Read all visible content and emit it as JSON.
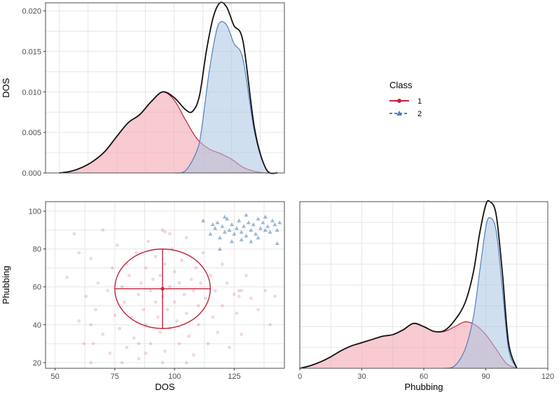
{
  "colors": {
    "class1_fill": "#f4a7b3",
    "class1_line": "#c0233b",
    "class2_fill": "#a9c4e2",
    "class2_line": "#4f7fb8",
    "total_line": "#111111",
    "grid": "#e6e6e6",
    "panel_border": "#4d4d4d"
  },
  "legend": {
    "title": "Class",
    "items": [
      {
        "label": "1",
        "color": "#c0233b",
        "shape": "circle",
        "linestyle": "solid"
      },
      {
        "label": "2",
        "color": "#4f7fb8",
        "shape": "triangle",
        "linestyle": "dashed"
      }
    ]
  },
  "chart_data": [
    {
      "type": "area",
      "panel": "top-left",
      "ylabel": "DOS",
      "xlabel": "",
      "xlim": [
        44,
        148
      ],
      "ylim": [
        0,
        0.021
      ],
      "x_ticks": [
        50,
        75,
        100,
        125
      ],
      "y_ticks": [
        0.0,
        0.005,
        0.01,
        0.015,
        0.02
      ],
      "y_tick_labels": [
        "0.000",
        "0.005",
        "0.010",
        "0.015",
        "0.020"
      ],
      "show_x_tick_labels": false,
      "grid": true,
      "series": [
        {
          "name": "1",
          "x": [
            50,
            55,
            60,
            65,
            70,
            75,
            80,
            85,
            90,
            95,
            100,
            105,
            110,
            115,
            120,
            125,
            130,
            135,
            140,
            145
          ],
          "values": [
            0.0,
            0.0002,
            0.0007,
            0.0015,
            0.0027,
            0.0045,
            0.0062,
            0.0072,
            0.0088,
            0.01,
            0.009,
            0.0065,
            0.0042,
            0.003,
            0.0024,
            0.0017,
            0.0007,
            0.0002,
            0.0,
            0.0
          ]
        },
        {
          "name": "2",
          "x": [
            100,
            105,
            110,
            112,
            115,
            118,
            120,
            123,
            126,
            130,
            135,
            140,
            145
          ],
          "values": [
            0.0,
            0.0003,
            0.0028,
            0.0055,
            0.012,
            0.017,
            0.0186,
            0.0182,
            0.016,
            0.014,
            0.005,
            0.0005,
            0.0
          ]
        },
        {
          "name": "total",
          "x": [
            50,
            55,
            60,
            65,
            70,
            75,
            80,
            85,
            90,
            95,
            100,
            105,
            108,
            111,
            114,
            117,
            120,
            123,
            126,
            130,
            135,
            140,
            145
          ],
          "values": [
            0.0,
            0.0002,
            0.0007,
            0.0015,
            0.0027,
            0.0045,
            0.0062,
            0.0072,
            0.0088,
            0.01,
            0.0093,
            0.0078,
            0.0076,
            0.0095,
            0.015,
            0.0192,
            0.021,
            0.0204,
            0.0182,
            0.0162,
            0.0055,
            0.0005,
            0.0
          ]
        }
      ]
    },
    {
      "type": "scatter",
      "panel": "bottom-left",
      "xlabel": "DOS",
      "ylabel": "Phubbing",
      "xlim": [
        46,
        146
      ],
      "ylim": [
        17,
        105
      ],
      "x_ticks": [
        50,
        75,
        100,
        125
      ],
      "y_ticks": [
        20,
        40,
        60,
        80,
        100
      ],
      "grid": true,
      "ellipse": {
        "class": "1",
        "center": [
          95,
          59
        ],
        "radius_x": 20,
        "radius_y": 21
      },
      "series": [
        {
          "name": "1",
          "marker": "circle",
          "points": [
            [
              55,
              65
            ],
            [
              58,
              88
            ],
            [
              60,
              42
            ],
            [
              62,
              30
            ],
            [
              63,
              55
            ],
            [
              65,
              20
            ],
            [
              65,
              75
            ],
            [
              67,
              48
            ],
            [
              68,
              62
            ],
            [
              70,
              35
            ],
            [
              70,
              90
            ],
            [
              72,
              58
            ],
            [
              73,
              25
            ],
            [
              74,
              70
            ],
            [
              75,
              45
            ],
            [
              76,
              82
            ],
            [
              77,
              38
            ],
            [
              78,
              60
            ],
            [
              79,
              52
            ],
            [
              80,
              28
            ],
            [
              80,
              72
            ],
            [
              81,
              66
            ],
            [
              82,
              44
            ],
            [
              83,
              33
            ],
            [
              84,
              78
            ],
            [
              85,
              56
            ],
            [
              85,
              22
            ],
            [
              86,
              62
            ],
            [
              87,
              48
            ],
            [
              88,
              70
            ],
            [
              88,
              40
            ],
            [
              89,
              84
            ],
            [
              90,
              30
            ],
            [
              90,
              58
            ],
            [
              91,
              64
            ],
            [
              92,
              52
            ],
            [
              92,
              76
            ],
            [
              93,
              44
            ],
            [
              94,
              36
            ],
            [
              94,
              66
            ],
            [
              95,
              90
            ],
            [
              95,
              55
            ],
            [
              96,
              26
            ],
            [
              96,
              72
            ],
            [
              97,
              48
            ],
            [
              98,
              60
            ],
            [
              98,
              38
            ],
            [
              99,
              80
            ],
            [
              100,
              52
            ],
            [
              100,
              68
            ],
            [
              101,
              42
            ],
            [
              102,
              30
            ],
            [
              102,
              62
            ],
            [
              103,
              74
            ],
            [
              104,
              56
            ],
            [
              105,
              46
            ],
            [
              105,
              86
            ],
            [
              106,
              34
            ],
            [
              107,
              64
            ],
            [
              108,
              58
            ],
            [
              108,
              24
            ],
            [
              109,
              70
            ],
            [
              110,
              50
            ],
            [
              110,
              40
            ],
            [
              111,
              62
            ],
            [
              112,
              78
            ],
            [
              113,
              54
            ],
            [
              114,
              30
            ],
            [
              115,
              66
            ],
            [
              116,
              44
            ],
            [
              117,
              58
            ],
            [
              118,
              36
            ],
            [
              120,
              50
            ],
            [
              120,
              72
            ],
            [
              122,
              62
            ],
            [
              123,
              28
            ],
            [
              125,
              56
            ],
            [
              126,
              46
            ],
            [
              127,
              58
            ],
            [
              128,
              35
            ],
            [
              130,
              66
            ],
            [
              132,
              54
            ],
            [
              135,
              48
            ],
            [
              138,
              58
            ],
            [
              140,
              40
            ],
            [
              142,
              55
            ],
            [
              96,
              89
            ],
            [
              98,
              88
            ],
            [
              127,
              55
            ],
            [
              128,
              58
            ],
            [
              85,
              30
            ],
            [
              88,
              25
            ],
            [
              60,
              78
            ],
            [
              65,
              40
            ],
            [
              78,
              20
            ],
            [
              95,
              20
            ],
            [
              105,
              20
            ],
            [
              66,
              30
            ]
          ]
        },
        {
          "name": "2",
          "marker": "triangle",
          "points": [
            [
              112,
              95
            ],
            [
              115,
              88
            ],
            [
              117,
              91
            ],
            [
              118,
              94
            ],
            [
              119,
              86
            ],
            [
              120,
              92
            ],
            [
              121,
              89
            ],
            [
              122,
              96
            ],
            [
              123,
              90
            ],
            [
              124,
              93
            ],
            [
              125,
              88
            ],
            [
              126,
              91
            ],
            [
              127,
              95
            ],
            [
              128,
              89
            ],
            [
              129,
              92
            ],
            [
              130,
              87
            ],
            [
              131,
              94
            ],
            [
              132,
              90
            ],
            [
              133,
              93
            ],
            [
              134,
              88
            ],
            [
              135,
              96
            ],
            [
              136,
              91
            ],
            [
              137,
              94
            ],
            [
              138,
              90
            ],
            [
              139,
              92
            ],
            [
              140,
              89
            ],
            [
              141,
              95
            ],
            [
              142,
              93
            ],
            [
              143,
              90
            ],
            [
              144,
              94
            ],
            [
              124,
              84
            ],
            [
              128,
              85
            ],
            [
              132,
              84
            ],
            [
              130,
              98
            ],
            [
              121,
              97
            ],
            [
              116,
              93
            ],
            [
              135,
              86
            ],
            [
              138,
              97
            ],
            [
              143,
              83
            ],
            [
              119,
              80
            ]
          ]
        }
      ]
    },
    {
      "type": "area",
      "panel": "bottom-right",
      "xlabel": "Phubbing",
      "ylabel": "",
      "xlim": [
        0,
        120
      ],
      "ylim": [
        0,
        0.052
      ],
      "x_ticks": [
        0,
        30,
        60,
        90,
        120
      ],
      "show_y_tick_labels": false,
      "grid": true,
      "series": [
        {
          "name": "1",
          "x": [
            0,
            5,
            10,
            15,
            20,
            25,
            30,
            35,
            40,
            45,
            50,
            55,
            60,
            65,
            70,
            75,
            80,
            85,
            90,
            95,
            100,
            105
          ],
          "values": [
            0.0,
            0.0008,
            0.002,
            0.0036,
            0.0055,
            0.007,
            0.008,
            0.009,
            0.01,
            0.0105,
            0.012,
            0.014,
            0.013,
            0.0115,
            0.0115,
            0.013,
            0.0145,
            0.0135,
            0.0105,
            0.006,
            0.0015,
            0.0
          ]
        },
        {
          "name": "2",
          "x": [
            70,
            75,
            80,
            84,
            87,
            90,
            92,
            95,
            98,
            101,
            105
          ],
          "values": [
            0.0,
            0.0008,
            0.006,
            0.016,
            0.03,
            0.044,
            0.047,
            0.043,
            0.025,
            0.006,
            0.0
          ]
        },
        {
          "name": "total",
          "x": [
            0,
            5,
            10,
            15,
            20,
            25,
            30,
            35,
            40,
            45,
            50,
            55,
            60,
            65,
            70,
            75,
            80,
            84,
            87,
            90,
            92,
            95,
            98,
            101,
            105
          ],
          "values": [
            0.0,
            0.0008,
            0.002,
            0.0036,
            0.0055,
            0.007,
            0.008,
            0.009,
            0.01,
            0.0105,
            0.012,
            0.014,
            0.013,
            0.0115,
            0.0118,
            0.015,
            0.0205,
            0.03,
            0.042,
            0.051,
            0.052,
            0.048,
            0.03,
            0.008,
            0.0
          ]
        }
      ]
    }
  ]
}
